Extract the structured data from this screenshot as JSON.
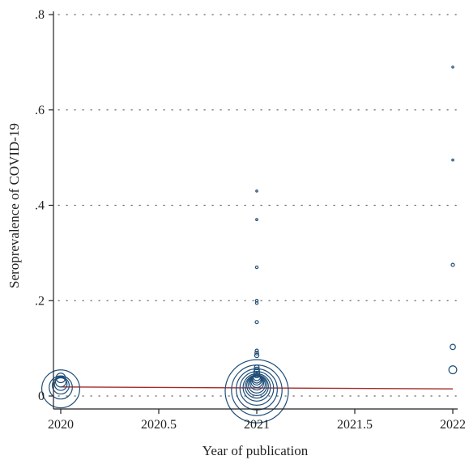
{
  "chart_data": {
    "type": "scatter",
    "title": "",
    "xlabel": "Year of publication",
    "ylabel": "Seroprevalence of COVID-19",
    "xlim": [
      2020,
      2022
    ],
    "ylim": [
      0,
      0.8
    ],
    "x_ticks": [
      2020,
      2020.5,
      2021,
      2021.5,
      2022
    ],
    "x_tick_labels": [
      "2020",
      "2020.5",
      "2021",
      "2021.5",
      "2022"
    ],
    "y_ticks": [
      0,
      0.2,
      0.4,
      0.6,
      0.8
    ],
    "y_tick_labels": [
      "0",
      ".2",
      ".4",
      ".6",
      ".8"
    ],
    "grid": "horizontal-dotted",
    "marker": "hollow-circle-weighted",
    "points": [
      {
        "x": 2020,
        "y": 0.015,
        "size": 3.6
      },
      {
        "x": 2020,
        "y": 0.018,
        "size": 2.2
      },
      {
        "x": 2020,
        "y": 0.022,
        "size": 1.6
      },
      {
        "x": 2020,
        "y": 0.025,
        "size": 1.2
      },
      {
        "x": 2020,
        "y": 0.03,
        "size": 1.0
      },
      {
        "x": 2020,
        "y": 0.038,
        "size": 0.9
      },
      {
        "x": 2021,
        "y": 0.01,
        "size": 6.0
      },
      {
        "x": 2021,
        "y": 0.012,
        "size": 4.8
      },
      {
        "x": 2021,
        "y": 0.014,
        "size": 3.9
      },
      {
        "x": 2021,
        "y": 0.016,
        "size": 3.2
      },
      {
        "x": 2021,
        "y": 0.018,
        "size": 2.6
      },
      {
        "x": 2021,
        "y": 0.02,
        "size": 2.2
      },
      {
        "x": 2021,
        "y": 0.022,
        "size": 1.9
      },
      {
        "x": 2021,
        "y": 0.024,
        "size": 1.6
      },
      {
        "x": 2021,
        "y": 0.027,
        "size": 1.3
      },
      {
        "x": 2021,
        "y": 0.03,
        "size": 1.1
      },
      {
        "x": 2021,
        "y": 0.033,
        "size": 0.9
      },
      {
        "x": 2021,
        "y": 0.036,
        "size": 0.8
      },
      {
        "x": 2021,
        "y": 0.04,
        "size": 0.7
      },
      {
        "x": 2021,
        "y": 0.045,
        "size": 0.6
      },
      {
        "x": 2021,
        "y": 0.05,
        "size": 0.55
      },
      {
        "x": 2021,
        "y": 0.055,
        "size": 0.5
      },
      {
        "x": 2021,
        "y": 0.06,
        "size": 0.45
      },
      {
        "x": 2021,
        "y": 0.085,
        "size": 0.4
      },
      {
        "x": 2021,
        "y": 0.09,
        "size": 0.35
      },
      {
        "x": 2021,
        "y": 0.095,
        "size": 0.3
      },
      {
        "x": 2021,
        "y": 0.155,
        "size": 0.3
      },
      {
        "x": 2021,
        "y": 0.195,
        "size": 0.25
      },
      {
        "x": 2021,
        "y": 0.2,
        "size": 0.25
      },
      {
        "x": 2021,
        "y": 0.27,
        "size": 0.25
      },
      {
        "x": 2021,
        "y": 0.37,
        "size": 0.2
      },
      {
        "x": 2021,
        "y": 0.43,
        "size": 0.15
      },
      {
        "x": 2022,
        "y": 0.055,
        "size": 0.75
      },
      {
        "x": 2022,
        "y": 0.103,
        "size": 0.5
      },
      {
        "x": 2022,
        "y": 0.275,
        "size": 0.3
      },
      {
        "x": 2022,
        "y": 0.495,
        "size": 0.15
      },
      {
        "x": 2022,
        "y": 0.69,
        "size": 0.1
      }
    ],
    "fit_line": {
      "x": [
        2020,
        2022
      ],
      "y": [
        0.019,
        0.015
      ],
      "color": "#a52a2a"
    },
    "marker_color": "#1f4e79",
    "axis_color": "#222222",
    "grid_color": "#666666"
  }
}
